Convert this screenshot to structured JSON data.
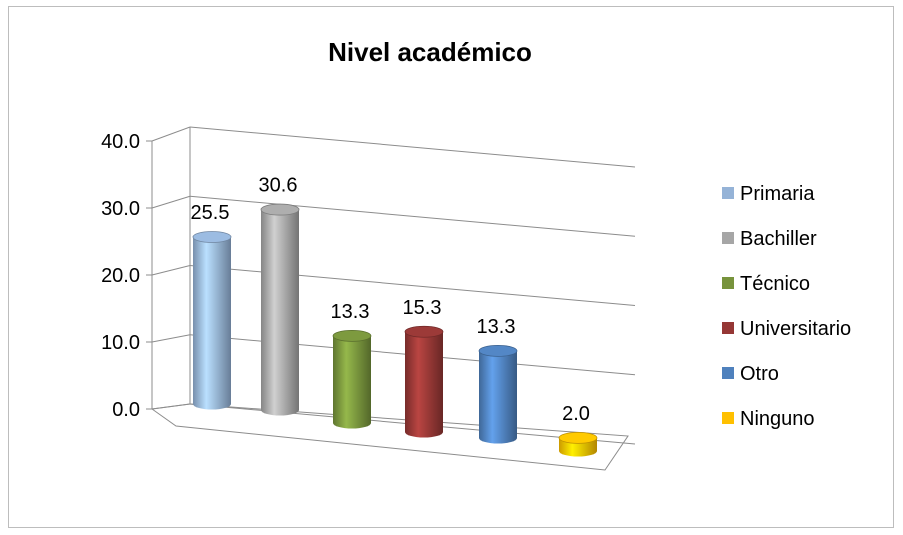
{
  "chart_data": {
    "type": "bar",
    "title": "Nivel académico",
    "categories": [
      "Primaria",
      "Bachiller",
      "Técnico",
      "Universitario",
      "Otro",
      "Ninguno"
    ],
    "values": [
      25.5,
      30.6,
      13.3,
      15.3,
      13.3,
      2.0
    ],
    "value_labels": [
      "25.5",
      "30.6",
      "13.3",
      "15.3",
      "13.3",
      "2.0"
    ],
    "yticks": [
      "0.0",
      "10.0",
      "20.0",
      "30.0",
      "40.0"
    ],
    "ylim": [
      0,
      40
    ],
    "grid": true,
    "legend_position": "right",
    "style": "3d-cylinder",
    "colors": [
      "#95b3d7",
      "#a6a6a6",
      "#77933c",
      "#953735",
      "#4f81bd",
      "#ffc000"
    ]
  }
}
